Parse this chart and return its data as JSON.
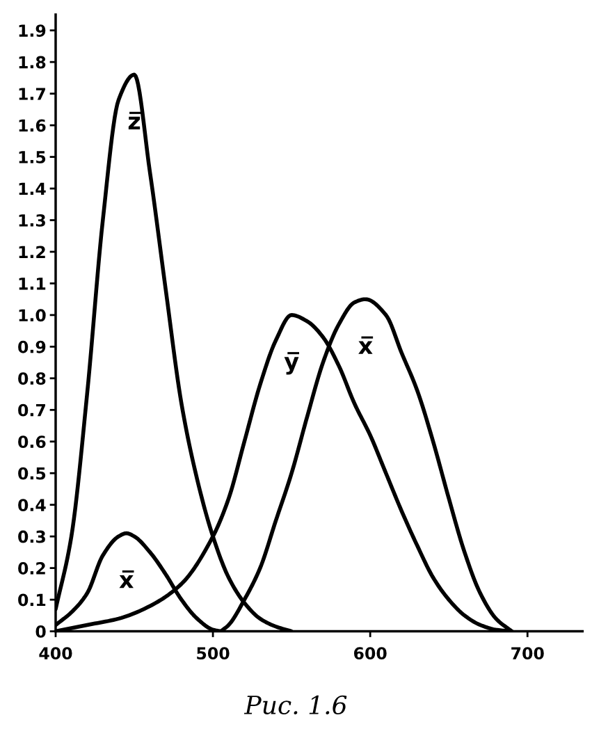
{
  "chart_data": {
    "type": "line",
    "series": [
      {
        "name": "z̅",
        "color": "#000000",
        "x": [
          400,
          410,
          420,
          430,
          440,
          450,
          460,
          470,
          480,
          490,
          500,
          510,
          520,
          530,
          540,
          550
        ],
        "values": [
          0.07,
          0.3,
          0.75,
          1.3,
          1.68,
          1.76,
          1.45,
          1.08,
          0.72,
          0.48,
          0.3,
          0.17,
          0.09,
          0.04,
          0.015,
          0
        ]
      },
      {
        "name": "y̅",
        "color": "#000000",
        "x": [
          400,
          420,
          440,
          460,
          480,
          500,
          510,
          520,
          530,
          540,
          550,
          560,
          570,
          580,
          590,
          600,
          610,
          620,
          630,
          640,
          650,
          660,
          670,
          680,
          690
        ],
        "values": [
          0.0,
          0.02,
          0.04,
          0.08,
          0.15,
          0.3,
          0.42,
          0.6,
          0.78,
          0.92,
          1.0,
          0.98,
          0.93,
          0.84,
          0.72,
          0.62,
          0.5,
          0.38,
          0.27,
          0.17,
          0.1,
          0.05,
          0.02,
          0.005,
          0
        ]
      },
      {
        "name": "x̅",
        "color": "#000000",
        "x": [
          505,
          510,
          520,
          530,
          540,
          550,
          560,
          570,
          580,
          590,
          597,
          610,
          620,
          630,
          640,
          650,
          660,
          670,
          680,
          690
        ],
        "values": [
          0,
          0.02,
          0.1,
          0.2,
          0.35,
          0.5,
          0.68,
          0.85,
          0.97,
          1.04,
          1.05,
          1.0,
          0.88,
          0.76,
          0.6,
          0.42,
          0.25,
          0.12,
          0.04,
          0
        ]
      },
      {
        "name": "x̅",
        "color": "#000000",
        "x": [
          400,
          410,
          420,
          430,
          440,
          445,
          450,
          460,
          470,
          480,
          490,
          500,
          505
        ],
        "values": [
          0.02,
          0.06,
          0.12,
          0.24,
          0.3,
          0.31,
          0.3,
          0.25,
          0.18,
          0.1,
          0.04,
          0.005,
          0
        ]
      }
    ],
    "xlim": [
      400,
      735
    ],
    "ylim": [
      0,
      1.95
    ],
    "xticks": [
      400,
      500,
      600,
      700
    ],
    "yticks": [
      0,
      0.1,
      0.2,
      0.3,
      0.4,
      0.5,
      0.6,
      0.7,
      0.8,
      0.9,
      {
        "value": 1.0,
        "label": "1.0"
      },
      1.1,
      1.2,
      1.3,
      1.4,
      1.5,
      1.6,
      1.7,
      1.8,
      1.9
    ],
    "grid": false,
    "legend": false,
    "annotations": [
      "Рис. 1.6"
    ]
  }
}
